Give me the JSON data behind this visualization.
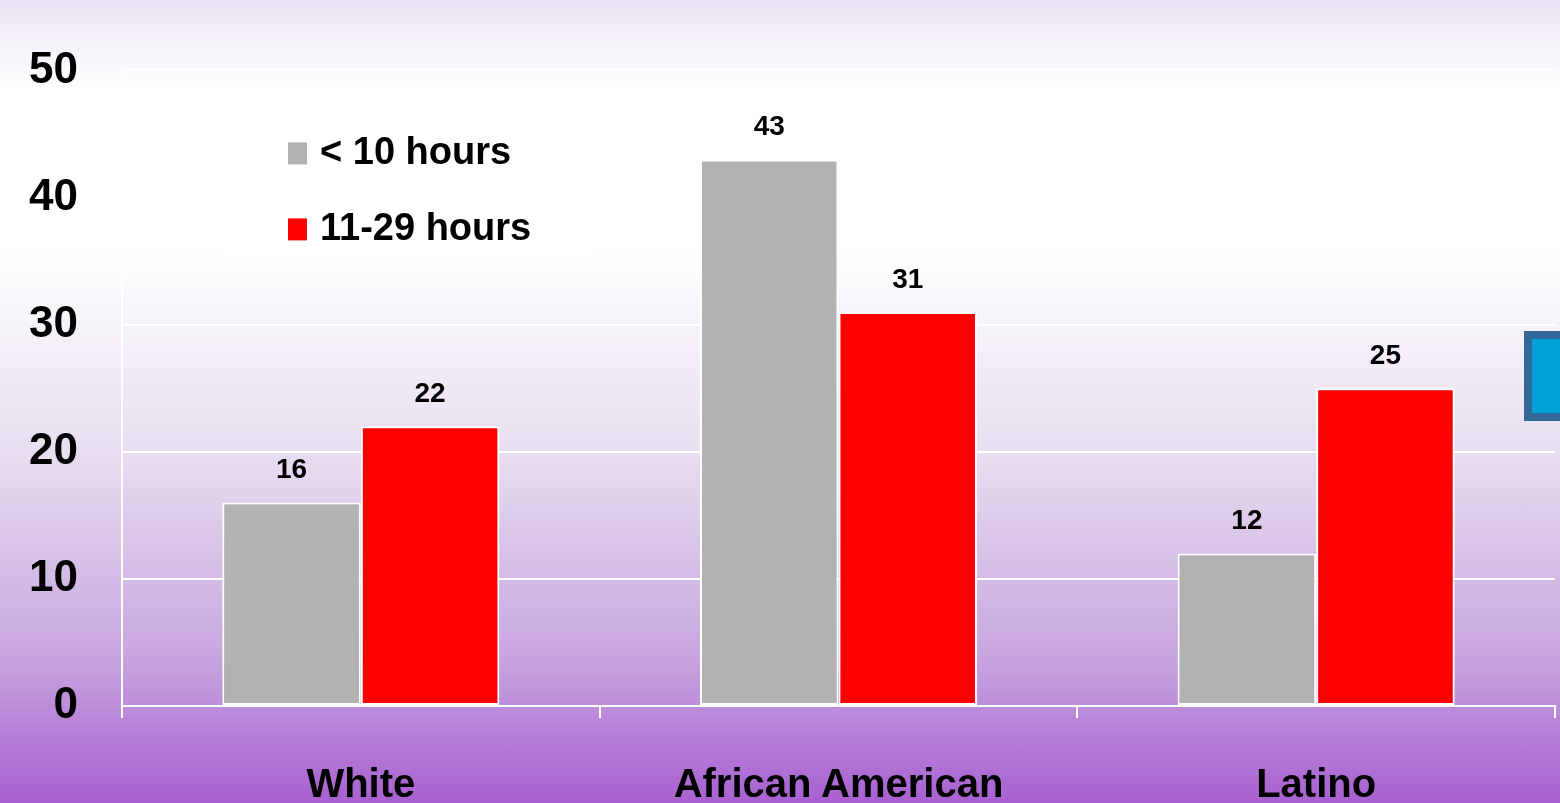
{
  "chart_data": {
    "type": "bar",
    "categories": [
      "White",
      "African American",
      "Latino"
    ],
    "series": [
      {
        "name": "< 10 hours",
        "color": "#b2b2b2",
        "values": [
          16,
          43,
          12
        ]
      },
      {
        "name": "11-29 hours",
        "color": "#ff0000",
        "values": [
          22,
          31,
          25
        ]
      }
    ],
    "ylim": [
      0,
      50
    ],
    "yticks": [
      0,
      10,
      20,
      30,
      40,
      50
    ],
    "grid": "y",
    "legend": "top left",
    "data_labels": true
  }
}
